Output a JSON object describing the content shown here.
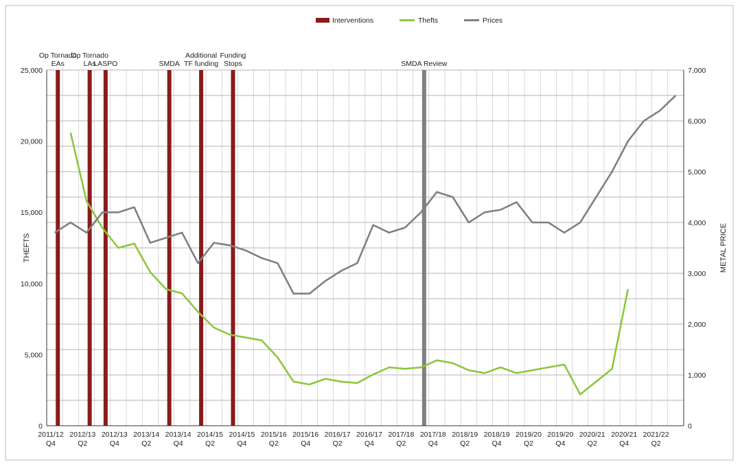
{
  "chart_data": {
    "type": "line",
    "legend": {
      "placement": "top",
      "items": [
        {
          "label": "Interventions",
          "color": "#8B1A1A",
          "kind": "bar"
        },
        {
          "label": "Thefts",
          "color": "#8DC63F",
          "kind": "line"
        },
        {
          "label": "Prices",
          "color": "#808080",
          "kind": "line"
        }
      ]
    },
    "y_left": {
      "label": "THEFTS",
      "range": [
        0,
        25000
      ],
      "ticks": [
        "0",
        "5,000",
        "10,000",
        "15,000",
        "20,000",
        "25,000"
      ],
      "tick_values": [
        0,
        5000,
        10000,
        15000,
        20000,
        25000
      ]
    },
    "y_right": {
      "label": "METAL PRICE",
      "range": [
        0,
        7000
      ],
      "ticks": [
        "0",
        "1,000",
        "2,000",
        "3,000",
        "4,000",
        "5,000",
        "6,000",
        "7,000"
      ],
      "tick_values": [
        0,
        1000,
        2000,
        3000,
        4000,
        5000,
        6000,
        7000
      ]
    },
    "x_labels": [
      {
        "top": "2011/12",
        "bottom": "Q4"
      },
      {
        "top": "2012/13",
        "bottom": "Q2"
      },
      {
        "top": "2012/13",
        "bottom": "Q4"
      },
      {
        "top": "2013/14",
        "bottom": "Q2"
      },
      {
        "top": "2013/14",
        "bottom": "Q4"
      },
      {
        "top": "2014/15",
        "bottom": "Q2"
      },
      {
        "top": "2014/15",
        "bottom": "Q4"
      },
      {
        "top": "2015/16",
        "bottom": "Q2"
      },
      {
        "top": "2015/16",
        "bottom": "Q4"
      },
      {
        "top": "2016/17",
        "bottom": "Q2"
      },
      {
        "top": "2016/17",
        "bottom": "Q4"
      },
      {
        "top": "2017/18",
        "bottom": "Q2"
      },
      {
        "top": "2017/18",
        "bottom": "Q4"
      },
      {
        "top": "2018/19",
        "bottom": "Q2"
      },
      {
        "top": "2018/19",
        "bottom": "Q4"
      },
      {
        "top": "2019/20",
        "bottom": "Q2"
      },
      {
        "top": "2019/20",
        "bottom": "Q4"
      },
      {
        "top": "2020/21",
        "bottom": "Q2"
      },
      {
        "top": "2020/21",
        "bottom": "Q4"
      },
      {
        "top": "2021/22",
        "bottom": "Q2"
      }
    ],
    "grid": true,
    "series": [
      {
        "name": "Thefts",
        "axis": "left",
        "color": "#8DC63F",
        "values": [
          null,
          20600,
          15800,
          13900,
          12500,
          12800,
          10800,
          9600,
          9300,
          8000,
          6900,
          6400,
          6200,
          6000,
          4800,
          3100,
          2900,
          3300,
          3100,
          3000,
          3600,
          4100,
          4000,
          4100,
          4600,
          4400,
          3900,
          3700,
          4100,
          3700,
          3900,
          4100,
          4300,
          2200,
          3100,
          4000,
          9600
        ]
      },
      {
        "name": "Prices",
        "axis": "right",
        "color": "#808080",
        "values": [
          3800,
          4000,
          3800,
          4200,
          4200,
          4300,
          3600,
          3700,
          3800,
          3200,
          3600,
          3550,
          3450,
          3300,
          3200,
          2600,
          2600,
          2850,
          3050,
          3200,
          3950,
          3800,
          3900,
          4200,
          4600,
          4500,
          4000,
          4200,
          4250,
          4400,
          4000,
          4000,
          3800,
          4000,
          4500,
          5000,
          5600,
          6000,
          6200,
          6500
        ]
      }
    ],
    "interventions": [
      {
        "label": [
          "Op Tornado",
          "EAs"
        ],
        "index": 0.2,
        "color": "#8B1A1A"
      },
      {
        "label": [
          "Op Tornado",
          "LAs"
        ],
        "index": 2.2,
        "color": "#8B1A1A"
      },
      {
        "label": [
          "LASPO"
        ],
        "index": 3.2,
        "color": "#8B1A1A"
      },
      {
        "label": [
          "SMDA"
        ],
        "index": 7.2,
        "color": "#8B1A1A"
      },
      {
        "label": [
          "Additional",
          "TF funding"
        ],
        "index": 9.2,
        "color": "#8B1A1A"
      },
      {
        "label": [
          "Funding",
          "Stops"
        ],
        "index": 11.2,
        "color": "#8B1A1A"
      },
      {
        "label": [
          "SMDA Review"
        ],
        "index": 23.2,
        "color": "#808080"
      }
    ]
  }
}
